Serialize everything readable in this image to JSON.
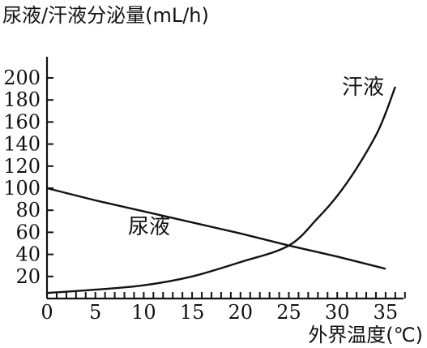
{
  "chart_data": {
    "type": "line",
    "title": "尿液/汗液分泌量(mL/h)",
    "xlabel": "外界温度(℃)",
    "ylabel": "尿液/汗液分泌量(mL/h)",
    "xlim": [
      0,
      37
    ],
    "ylim": [
      0,
      200
    ],
    "x_ticks": [
      0,
      5,
      10,
      15,
      20,
      25,
      30,
      35
    ],
    "y_ticks": [
      20,
      40,
      60,
      80,
      100,
      120,
      140,
      160,
      180,
      200
    ],
    "x_minor_step": 1,
    "grid": false,
    "series": [
      {
        "name": "尿液",
        "x": [
          0,
          5,
          10,
          15,
          20,
          25,
          30,
          35
        ],
        "y": [
          100,
          89,
          79,
          69,
          59,
          48,
          38,
          27
        ]
      },
      {
        "name": "汗液",
        "x": [
          0,
          5,
          10,
          15,
          20,
          25,
          28,
          30,
          32,
          34,
          35,
          36
        ],
        "y": [
          5,
          8,
          12,
          20,
          33,
          48,
          73,
          93,
          118,
          148,
          168,
          192
        ]
      }
    ]
  }
}
